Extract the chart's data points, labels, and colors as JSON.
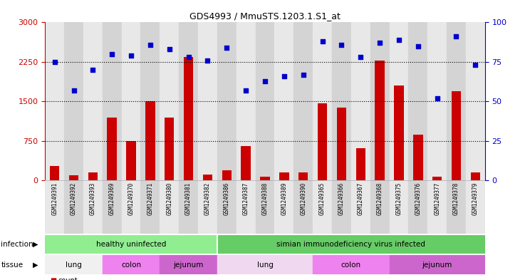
{
  "title": "GDS4993 / MmuSTS.1203.1.S1_at",
  "samples": [
    "GSM1249391",
    "GSM1249392",
    "GSM1249393",
    "GSM1249369",
    "GSM1249370",
    "GSM1249371",
    "GSM1249380",
    "GSM1249381",
    "GSM1249382",
    "GSM1249386",
    "GSM1249387",
    "GSM1249388",
    "GSM1249389",
    "GSM1249390",
    "GSM1249365",
    "GSM1249366",
    "GSM1249367",
    "GSM1249368",
    "GSM1249375",
    "GSM1249376",
    "GSM1249377",
    "GSM1249378",
    "GSM1249379"
  ],
  "counts": [
    280,
    100,
    160,
    1200,
    750,
    1500,
    1200,
    2350,
    120,
    200,
    650,
    75,
    150,
    150,
    1470,
    1380,
    620,
    2280,
    1800,
    870,
    70,
    1700,
    160
  ],
  "percentiles": [
    75,
    57,
    70,
    80,
    79,
    86,
    83,
    78,
    76,
    84,
    57,
    63,
    66,
    67,
    88,
    86,
    78,
    87,
    89,
    85,
    52,
    91,
    73
  ],
  "ylim_left": [
    0,
    3000
  ],
  "ylim_right": [
    0,
    100
  ],
  "yticks_left": [
    0,
    750,
    1500,
    2250,
    3000
  ],
  "yticks_right": [
    0,
    25,
    50,
    75,
    100
  ],
  "bar_color": "#CC0000",
  "dot_color": "#0000CC",
  "infection_groups": [
    {
      "label": "healthy uninfected",
      "start": 0,
      "end": 8,
      "color": "#90EE90"
    },
    {
      "label": "simian immunodeficiency virus infected",
      "start": 9,
      "end": 22,
      "color": "#66CC66"
    }
  ],
  "tissue_groups": [
    {
      "label": "lung",
      "start": 0,
      "end": 2,
      "color": "#f0f0f0"
    },
    {
      "label": "colon",
      "start": 3,
      "end": 5,
      "color": "#EE82EE"
    },
    {
      "label": "jejunum",
      "start": 6,
      "end": 8,
      "color": "#CC66CC"
    },
    {
      "label": "lung",
      "start": 9,
      "end": 13,
      "color": "#f0d8f0"
    },
    {
      "label": "colon",
      "start": 14,
      "end": 17,
      "color": "#EE82EE"
    },
    {
      "label": "jejunum",
      "start": 18,
      "end": 22,
      "color": "#CC66CC"
    }
  ],
  "col_colors": [
    "#e8e8e8",
    "#d4d4d4"
  ]
}
